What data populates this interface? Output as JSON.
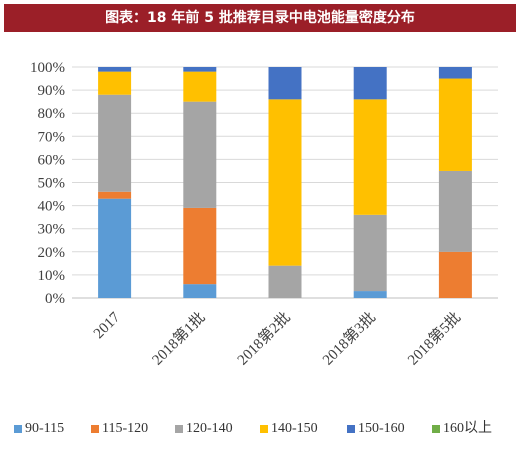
{
  "title": "图表：18 年前 5 批推荐目录中电池能量密度分布",
  "chart_data": {
    "type": "bar",
    "stacked": true,
    "categories": [
      "2017",
      "2018第1批",
      "2018第2批",
      "2018第3批",
      "2018第5批"
    ],
    "series": [
      {
        "name": "90-115",
        "color": "#5b9bd5",
        "values": [
          43,
          6,
          0,
          3,
          0
        ]
      },
      {
        "name": "115-120",
        "color": "#ed7d31",
        "values": [
          3,
          33,
          0,
          0,
          20
        ]
      },
      {
        "name": "120-140",
        "color": "#a5a5a5",
        "values": [
          42,
          46,
          14,
          33,
          35
        ]
      },
      {
        "name": "140-150",
        "color": "#ffc000",
        "values": [
          10,
          13,
          72,
          50,
          40
        ]
      },
      {
        "name": "150-160",
        "color": "#4472c4",
        "values": [
          2,
          2,
          14,
          14,
          5
        ]
      },
      {
        "name": "160以上",
        "color": "#70ad47",
        "values": [
          0,
          0,
          0,
          0,
          0
        ]
      }
    ],
    "ylim": [
      0,
      100
    ],
    "yticks": [
      "0%",
      "10%",
      "20%",
      "30%",
      "40%",
      "50%",
      "60%",
      "70%",
      "80%",
      "90%",
      "100%"
    ],
    "gridlines": true,
    "legend_position": "bottom"
  }
}
